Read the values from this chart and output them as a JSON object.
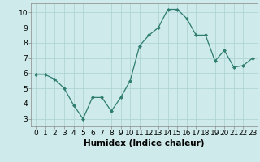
{
  "x": [
    0,
    1,
    2,
    3,
    4,
    5,
    6,
    7,
    8,
    9,
    10,
    11,
    12,
    13,
    14,
    15,
    16,
    17,
    18,
    19,
    20,
    21,
    22,
    23
  ],
  "y": [
    5.9,
    5.9,
    5.6,
    5.0,
    3.9,
    3.0,
    4.4,
    4.4,
    3.5,
    4.4,
    5.5,
    7.8,
    8.5,
    9.0,
    10.2,
    10.2,
    9.6,
    8.5,
    8.5,
    6.8,
    7.5,
    6.4,
    6.5,
    7.0
  ],
  "line_color": "#2e7d6e",
  "marker": "D",
  "marker_size": 2,
  "bg_color": "#ceeaea",
  "grid_color": "#b0d4d4",
  "xlabel": "Humidex (Indice chaleur)",
  "xlim": [
    -0.5,
    23.5
  ],
  "ylim": [
    2.5,
    10.6
  ],
  "yticks": [
    3,
    4,
    5,
    6,
    7,
    8,
    9,
    10
  ],
  "xticks": [
    0,
    1,
    2,
    3,
    4,
    5,
    6,
    7,
    8,
    9,
    10,
    11,
    12,
    13,
    14,
    15,
    16,
    17,
    18,
    19,
    20,
    21,
    22,
    23
  ],
  "xtick_labels": [
    "0",
    "1",
    "2",
    "3",
    "4",
    "5",
    "6",
    "7",
    "8",
    "9",
    "10",
    "11",
    "12",
    "13",
    "14",
    "15",
    "16",
    "17",
    "18",
    "19",
    "20",
    "21",
    "22",
    "23"
  ],
  "tick_fontsize": 6.5,
  "xlabel_fontsize": 7.5
}
